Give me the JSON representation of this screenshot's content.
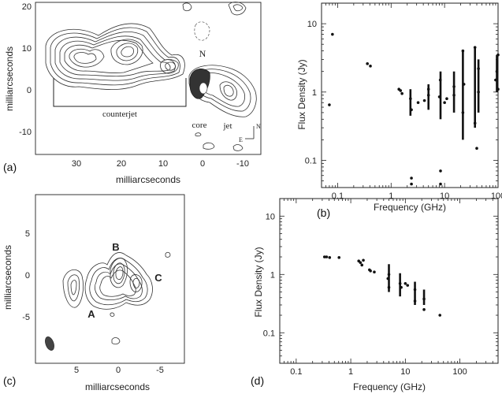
{
  "panels": {
    "a": {
      "label": "(a)",
      "xlabel": "milliarcseconds",
      "ylabel": "milliarcseconds",
      "xticks": [
        "30",
        "20",
        "10",
        "0",
        "-10"
      ],
      "yticks": [
        "20",
        "10",
        "0",
        "-10"
      ],
      "annotations": {
        "counterjet": "counterjet",
        "core": "core",
        "jet": "jet",
        "north": "N",
        "compass_n": "N",
        "compass_e": "E"
      }
    },
    "b": {
      "label": "(b)"
    },
    "c": {
      "label": "(c)",
      "xlabel": "milliarcseconds",
      "ylabel": "milliarcseconds",
      "xticks": [
        "5",
        "0",
        "-5"
      ],
      "yticks": [
        "5",
        "0",
        "-5"
      ],
      "annotations": {
        "A": "A",
        "B": "B",
        "C": "C"
      }
    },
    "d": {
      "label": "(d)"
    }
  },
  "chart_data": [
    {
      "id": "b",
      "type": "scatter",
      "xlabel": "Frequency (GHz)",
      "ylabel": "Flux Density (Jy)",
      "xscale": "log",
      "yscale": "log",
      "xlim": [
        0.05,
        100
      ],
      "ylim": [
        0.04,
        20
      ],
      "xticks": [
        0.1,
        1,
        10,
        100
      ],
      "xticklabels": [
        "0.1",
        "1",
        "10",
        "100"
      ],
      "yticks": [
        0.1,
        1,
        10
      ],
      "yticklabels": [
        "0.1",
        "1",
        "10"
      ],
      "points": [
        [
          0.07,
          0.65
        ],
        [
          0.08,
          7.0
        ],
        [
          0.36,
          2.6
        ],
        [
          0.41,
          2.4
        ],
        [
          1.4,
          1.1
        ],
        [
          1.5,
          1.05
        ],
        [
          1.6,
          0.95
        ],
        [
          2.3,
          0.8
        ],
        [
          2.4,
          0.55
        ],
        [
          2.4,
          0.055
        ],
        [
          2.4,
          0.045
        ],
        [
          3.2,
          0.7
        ],
        [
          4.2,
          0.75
        ],
        [
          5.0,
          0.9
        ],
        [
          5.0,
          1.1
        ],
        [
          8.0,
          0.85
        ],
        [
          8.3,
          1.5
        ],
        [
          8.4,
          0.07
        ],
        [
          8.4,
          0.045
        ],
        [
          10.0,
          0.7
        ],
        [
          11.0,
          0.8
        ],
        [
          15.0,
          1.2
        ],
        [
          15.0,
          0.9
        ],
        [
          22.0,
          0.5
        ],
        [
          22.0,
          4.0
        ],
        [
          23.0,
          1.3
        ],
        [
          37.0,
          0.35
        ],
        [
          37.0,
          4.5
        ],
        [
          40.0,
          0.15
        ],
        [
          43.0,
          1.0
        ],
        [
          43.0,
          2.2
        ],
        [
          90.0,
          1.5
        ],
        [
          95.0,
          2.0
        ],
        [
          100.0,
          1.1
        ],
        [
          100.0,
          3.5
        ]
      ],
      "ranges": [
        [
          2.3,
          0.45,
          1.1
        ],
        [
          5.0,
          0.55,
          1.3
        ],
        [
          8.4,
          0.4,
          2.0
        ],
        [
          15.0,
          0.5,
          2.0
        ],
        [
          22.0,
          0.2,
          4.0
        ],
        [
          37.0,
          0.3,
          4.5
        ],
        [
          43.0,
          0.5,
          3.0
        ],
        [
          95.0,
          1.0,
          3.5
        ]
      ]
    },
    {
      "id": "d",
      "type": "scatter",
      "xlabel": "Frequency (GHz)",
      "ylabel": "Flux Density (Jy)",
      "xscale": "log",
      "yscale": "log",
      "xlim": [
        0.05,
        500
      ],
      "ylim": [
        0.03,
        20
      ],
      "xticks": [
        0.1,
        1,
        10,
        100
      ],
      "xticklabels": [
        "0.1",
        "1",
        "10",
        "100"
      ],
      "yticks": [
        0.1,
        1,
        10
      ],
      "yticklabels": [
        "0.1",
        "1",
        "10"
      ],
      "points": [
        [
          0.33,
          2.0
        ],
        [
          0.36,
          2.0
        ],
        [
          0.41,
          1.95
        ],
        [
          0.61,
          1.95
        ],
        [
          1.4,
          1.7
        ],
        [
          1.5,
          1.6
        ],
        [
          1.6,
          1.45
        ],
        [
          1.7,
          1.75
        ],
        [
          2.2,
          1.2
        ],
        [
          2.3,
          1.15
        ],
        [
          2.7,
          1.1
        ],
        [
          4.8,
          0.85
        ],
        [
          5.0,
          1.0
        ],
        [
          5.0,
          0.6
        ],
        [
          8.0,
          0.7
        ],
        [
          8.4,
          0.6
        ],
        [
          10.0,
          0.7
        ],
        [
          11.0,
          0.65
        ],
        [
          15.0,
          0.55
        ],
        [
          15.0,
          0.35
        ],
        [
          22.0,
          0.38
        ],
        [
          22.0,
          0.25
        ],
        [
          43.0,
          0.2
        ]
      ],
      "ranges": [
        [
          5.0,
          0.5,
          1.5
        ],
        [
          8.0,
          0.42,
          1.05
        ],
        [
          15.0,
          0.3,
          0.75
        ],
        [
          22.0,
          0.3,
          0.55
        ]
      ]
    }
  ]
}
